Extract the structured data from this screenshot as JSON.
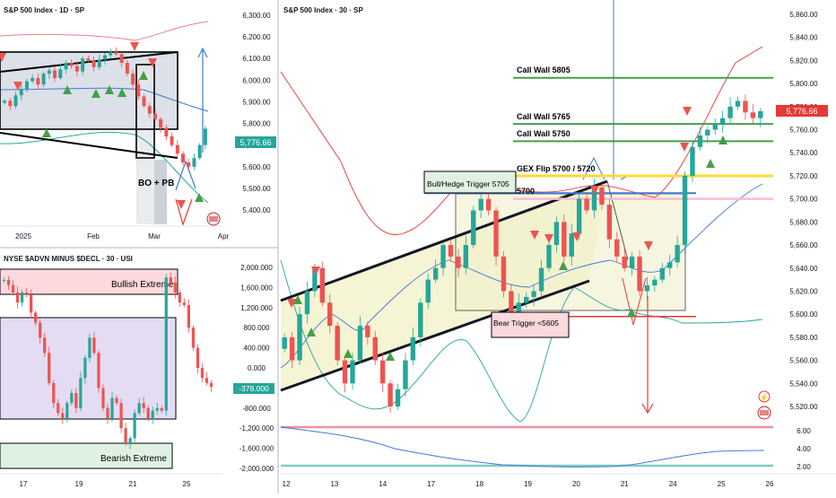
{
  "chart_data": [
    {
      "type": "candlestick",
      "title": "S&P 500 Index · 1D · SP",
      "x_ticks": [
        "2025",
        "Feb",
        "Mar",
        "Apr"
      ],
      "y_ticks": [
        "6,300.00",
        "6,200.00",
        "6,100.00",
        "6,000.00",
        "5,900.00",
        "5,800.00",
        "5,700.00",
        "5,600.00",
        "5,500.00",
        "5,400.00"
      ],
      "ylim": [
        5400,
        6300
      ],
      "last_price": "5,776.66",
      "closes": [
        5905,
        5880,
        5930,
        5960,
        5995,
        6010,
        5980,
        6030,
        6045,
        6010,
        6050,
        6080,
        6065,
        6040,
        6100,
        6090,
        6060,
        6095,
        6115,
        6130,
        6120,
        6080,
        6030,
        5980,
        5925,
        5880,
        5845,
        5820,
        5780,
        5740,
        5700,
        5660,
        5620,
        5600,
        5640,
        5700,
        5776
      ],
      "annotations": [
        "BO + PB"
      ]
    },
    {
      "type": "candlestick",
      "title": "NYSE $ADVN MINUS $DECL · 30 · USI",
      "x_ticks": [
        "17",
        "19",
        "21",
        "25"
      ],
      "y_ticks": [
        "2,000.000",
        "1,600.000",
        "1,200.000",
        "800.000",
        "400.000",
        "0.000",
        "-400.000",
        "-800.000",
        "-1,200.000",
        "-1,600.000",
        "-2,000.000"
      ],
      "ylim": [
        -2000,
        2000
      ],
      "last_value": "-378.000",
      "zones": [
        "Bullish Extreme",
        "Bearish Extreme"
      ],
      "values": [
        1750,
        1650,
        1500,
        1300,
        1500,
        1450,
        1100,
        900,
        600,
        300,
        -300,
        -700,
        -900,
        -1000,
        -700,
        -500,
        -800,
        -200,
        200,
        600,
        300,
        -400,
        -800,
        -1000,
        -600,
        -700,
        -1200,
        -1500,
        -1400,
        -900,
        -700,
        -800,
        -1000,
        -850,
        -800,
        -850,
        1800,
        1700,
        1500,
        1300,
        1250,
        800,
        400,
        0,
        -200,
        -300,
        -378
      ]
    },
    {
      "type": "candlestick",
      "title": "S&P 500 Index · 30 · SP",
      "x_ticks": [
        "12",
        "13",
        "14",
        "17",
        "18",
        "19",
        "20",
        "21",
        "24",
        "25",
        "26"
      ],
      "y_ticks": [
        "5,860.00",
        "5,840.00",
        "5,820.00",
        "5,800.00",
        "5,780.00",
        "5,760.00",
        "5,740.00",
        "5,720.00",
        "5,700.00",
        "5,680.00",
        "5,660.00",
        "5,640.00",
        "5,620.00",
        "5,600.00",
        "5,580.00",
        "5,560.00",
        "5,540.00",
        "5,520.00"
      ],
      "ylim": [
        5505,
        5868
      ],
      "last_price": "5,776.66",
      "levels": [
        {
          "label": "Call Wall 5805",
          "value": 5805
        },
        {
          "label": "Call Wall 5765",
          "value": 5765
        },
        {
          "label": "Call Wall 5750",
          "value": 5750
        },
        {
          "label": "GEX Flip 5700 / 5720",
          "value": 5720
        },
        {
          "label": "5700",
          "value": 5700
        },
        {
          "label": "Bull/Hedge Trigger 5705",
          "value": 5705
        },
        {
          "label": "Bear Trigger <5605",
          "value": 5598
        }
      ],
      "closes": [
        5580,
        5560,
        5600,
        5620,
        5640,
        5610,
        5590,
        5560,
        5540,
        5560,
        5590,
        5580,
        5560,
        5540,
        5520,
        5535,
        5560,
        5580,
        5610,
        5630,
        5640,
        5660,
        5650,
        5640,
        5660,
        5690,
        5700,
        5690,
        5650,
        5620,
        5600,
        5610,
        5615,
        5620,
        5640,
        5660,
        5680,
        5650,
        5670,
        5700,
        5690,
        5710,
        5695,
        5665,
        5650,
        5640,
        5650,
        5620,
        5625,
        5630,
        5640,
        5645,
        5660,
        5720,
        5745,
        5755,
        5760,
        5765,
        5770,
        5780,
        5785,
        5775,
        5770,
        5776
      ],
      "oscillator_ticks": [
        "6.00",
        "4.00",
        "2.00"
      ]
    }
  ]
}
